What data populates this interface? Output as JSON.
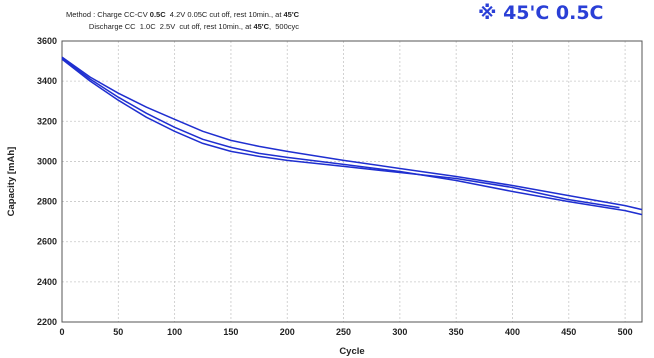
{
  "chart_data": {
    "type": "line",
    "method_label": "Method :",
    "method_line1": {
      "prefix": "Charge CC-CV ",
      "rate": "0.5C",
      "rest": "  4.2V 0.05C cut off, rest 10min., at ",
      "temp": "45'C"
    },
    "method_line2": {
      "prefix": "Discharge CC  1.0C  2.5V  cut off, rest 10min., at ",
      "temp": "45'C",
      "suffix": ",  500cyc"
    },
    "tag": "※ 45'C 0.5C",
    "xlabel": "Cycle",
    "ylabel": "Capacity [mAh]",
    "xlim": [
      0,
      515
    ],
    "ylim": [
      2200,
      3600
    ],
    "xticks": [
      0,
      50,
      100,
      150,
      200,
      250,
      300,
      350,
      400,
      450,
      500
    ],
    "yticks": [
      2200,
      2400,
      2600,
      2800,
      3000,
      3200,
      3400,
      3600
    ],
    "grid": true,
    "series_color": "#1f2fd0",
    "series": [
      {
        "x": [
          0,
          25,
          50,
          75,
          100,
          125,
          150,
          175,
          200,
          250,
          300,
          350,
          400,
          450,
          500,
          515
        ],
        "y": [
          3520,
          3420,
          3340,
          3270,
          3210,
          3150,
          3105,
          3075,
          3050,
          3005,
          2965,
          2925,
          2880,
          2830,
          2780,
          2760
        ]
      },
      {
        "x": [
          0,
          25,
          50,
          75,
          100,
          125,
          150,
          175,
          200,
          250,
          300,
          350,
          400,
          450,
          500,
          515
        ],
        "y": [
          3515,
          3410,
          3320,
          3240,
          3170,
          3110,
          3070,
          3040,
          3020,
          2985,
          2950,
          2905,
          2850,
          2800,
          2755,
          2735
        ]
      },
      {
        "x": [
          0,
          25,
          50,
          75,
          100,
          125,
          150,
          175,
          200,
          250,
          300,
          350,
          400,
          450,
          495
        ],
        "y": [
          3510,
          3400,
          3305,
          3220,
          3150,
          3090,
          3050,
          3025,
          3005,
          2975,
          2945,
          2915,
          2870,
          2810,
          2770
        ]
      }
    ]
  }
}
